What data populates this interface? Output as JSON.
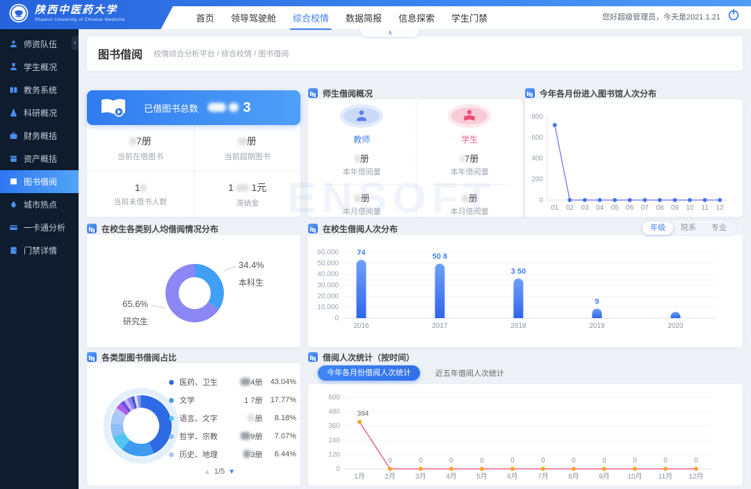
{
  "header": {
    "university_name": "陕西中医药大学",
    "university_name_en": "Shaanxi University of Chinese Medicine",
    "nav": {
      "items": [
        {
          "label": "首页",
          "active": false
        },
        {
          "label": "领导驾驶舱",
          "active": false
        },
        {
          "label": "综合校情",
          "active": true
        },
        {
          "label": "数据简报",
          "active": false
        },
        {
          "label": "信息探索",
          "active": false
        },
        {
          "label": "学生门禁",
          "active": false
        }
      ]
    },
    "greeting": "您好超级管理员，今天是2021.1.21"
  },
  "sidebar": {
    "items": [
      {
        "label": "师资队伍",
        "icon": "teacher-icon",
        "active": false
      },
      {
        "label": "学生概况",
        "icon": "student-icon",
        "active": false
      },
      {
        "label": "教务系统",
        "icon": "books-icon",
        "active": false
      },
      {
        "label": "科研概况",
        "icon": "flask-icon",
        "active": false
      },
      {
        "label": "财务概括",
        "icon": "briefcase-icon",
        "active": false
      },
      {
        "label": "资产概括",
        "icon": "asset-box-icon",
        "active": false
      },
      {
        "label": "图书借阅",
        "icon": "open-book-icon",
        "active": true
      },
      {
        "label": "城市热点",
        "icon": "flame-icon",
        "active": false
      },
      {
        "label": "一卡通分析",
        "icon": "card-icon",
        "active": false
      },
      {
        "label": "门禁详情",
        "icon": "door-icon",
        "active": false
      }
    ]
  },
  "page": {
    "title": "图书借阅",
    "breadcrumb": "校情综合分析平台 / 综合校情 / 图书借阅"
  },
  "watermark": "ENSOFT",
  "total_card": {
    "banner_label": "已借图书总数",
    "banner_value_visible": "3",
    "stats": [
      {
        "value": "7册",
        "label": "当前在借图书"
      },
      {
        "value": "册",
        "label": "当前超期图书"
      },
      {
        "value": "1",
        "label": "当前未借书人数"
      },
      {
        "value": "1",
        "value2": "1元",
        "label": "滞纳金"
      }
    ]
  },
  "teacher_student_card": {
    "title": "师生借阅概况",
    "groups": [
      {
        "name": "教师",
        "year_value": "册",
        "year_label": "本年借阅量",
        "month_value": "册",
        "month_label": "本月借阅量"
      },
      {
        "name": "学生",
        "year_value": "7册",
        "year_label": "本年借阅量",
        "month_value": "册",
        "month_label": "本月借阅量"
      }
    ]
  },
  "entries_card": {
    "title": "今年各月份进入图书馆人次分布"
  },
  "category_card": {
    "title": "在校生各类别人均借阅情况分布"
  },
  "year_card": {
    "title": "在校生借阅人次分布",
    "tabs": [
      {
        "label": "年级",
        "active": true
      },
      {
        "label": "院系",
        "active": false
      },
      {
        "label": "专业",
        "active": false
      }
    ]
  },
  "book_card": {
    "title": "各类型图书借阅占比",
    "pagination": "1/5",
    "pager_up_icon": "▲",
    "pager_down_icon": "▼"
  },
  "time_card": {
    "title": "借阅人次统计（按时间）",
    "tabs": [
      {
        "label": "今年各月份借阅人次统计",
        "active": true
      },
      {
        "label": "近五年借阅人次统计",
        "active": false
      }
    ]
  },
  "chart_data": [
    {
      "id": "entries-by-month",
      "type": "line",
      "title": "今年各月份进入图书馆人次分布",
      "x": [
        "01",
        "02",
        "03",
        "04",
        "05",
        "06",
        "07",
        "08",
        "09",
        "10",
        "11",
        "12"
      ],
      "values": [
        720,
        0,
        0,
        0,
        0,
        0,
        0,
        0,
        0,
        0,
        0,
        0
      ],
      "ylim": [
        0,
        800
      ],
      "yticks": [
        0,
        200,
        400,
        600,
        800
      ],
      "grid": false,
      "legend_position": "none",
      "line_color": "#8086f0",
      "point_color": "#4a74f0"
    },
    {
      "id": "student-category",
      "type": "pie",
      "title": "在校生各类别人均借阅情况分布",
      "slices": [
        {
          "label": "本科生",
          "value": 34.4,
          "pct_label": "34.4%",
          "color": "#41a0f5"
        },
        {
          "label": "研究生",
          "value": 65.6,
          "pct_label": "65.6%",
          "color": "#8b87f4"
        }
      ]
    },
    {
      "id": "borrow-by-year",
      "type": "bar",
      "title": "在校生借阅人次分布",
      "categories": [
        "2016",
        "2017",
        "2018",
        "2019",
        "2020"
      ],
      "values": [
        53000,
        49500,
        36000,
        8500,
        2500
      ],
      "labels": [
        "74",
        "50 8",
        "3 50",
        "9",
        ""
      ],
      "ylim": [
        0,
        60000
      ],
      "yticks": [
        0,
        10000,
        20000,
        30000,
        40000,
        50000,
        60000
      ],
      "grid": true,
      "bar_color_top": "#6fa0f8",
      "bar_color_bottom": "#2f66ea",
      "label_color": "#3f7ef7"
    },
    {
      "id": "book-categories",
      "type": "pie",
      "title": "各类型图书借阅占比",
      "slices": [
        {
          "label": "医药、卫生",
          "value": 43.04,
          "color": "#2d6ae3"
        },
        {
          "label": "文学",
          "value": 17.77,
          "color": "#3f9bf0"
        },
        {
          "label": "语言、文字",
          "value": 8.18,
          "color": "#52c5f2"
        },
        {
          "label": "哲学、宗教",
          "value": 7.07,
          "color": "#8fbdf6"
        },
        {
          "label": "历史、地理",
          "value": 6.44,
          "color": "#aac7f8"
        },
        {
          "label": "",
          "value": 2.5,
          "color": "#b9c6f8"
        },
        {
          "label": "",
          "value": 3.2,
          "color": "#b05ce8"
        },
        {
          "label": "",
          "value": 2.2,
          "color": "#6a52e8"
        },
        {
          "label": "",
          "value": 2.0,
          "color": "#c4b5f6"
        },
        {
          "label": "",
          "value": 2.2,
          "color": "#8d7ff2"
        },
        {
          "label": "",
          "value": 1.6,
          "color": "#3d55cc"
        },
        {
          "label": "",
          "value": 1.6,
          "color": "#cfe0fb"
        },
        {
          "label": "",
          "value": 1.2,
          "color": "#9b8cf4"
        },
        {
          "label": "",
          "value": 1.0,
          "color": "#5b8af0"
        }
      ],
      "legend": [
        {
          "label": "医药、卫生",
          "count": "4册",
          "pct": "43.04%",
          "color": "#2d6ae3"
        },
        {
          "label": "文学",
          "count": "1 7册",
          "pct": "17.77%",
          "color": "#3f9bf0"
        },
        {
          "label": "语言、文字",
          "count": "册",
          "pct": "8.18%",
          "color": "#52c5f2"
        },
        {
          "label": "哲学、宗教",
          "count": "9册",
          "pct": "7.07%",
          "color": "#8fbdf6"
        },
        {
          "label": "历史、地理",
          "count": "3册",
          "pct": "6.44%",
          "color": "#aac7f8"
        }
      ],
      "pagination": "1/5"
    },
    {
      "id": "borrow-by-month",
      "type": "line",
      "title": "借阅人次统计（按时间）",
      "x": [
        "1月",
        "2月",
        "3月",
        "4月",
        "5月",
        "6月",
        "7月",
        "8月",
        "9月",
        "10月",
        "11月",
        "12月"
      ],
      "values": [
        394,
        0,
        0,
        0,
        0,
        0,
        0,
        0,
        0,
        0,
        0,
        0
      ],
      "point_labels": [
        "394",
        "0",
        "0",
        "0",
        "0",
        "0",
        "0",
        "0",
        "0",
        "0",
        "0",
        "0"
      ],
      "ylim": [
        0,
        600
      ],
      "yticks": [
        0,
        120,
        240,
        360,
        480,
        600
      ],
      "grid": true,
      "legend_position": "none",
      "line_color": "#f0608f",
      "point_color": "#f7a325"
    }
  ]
}
